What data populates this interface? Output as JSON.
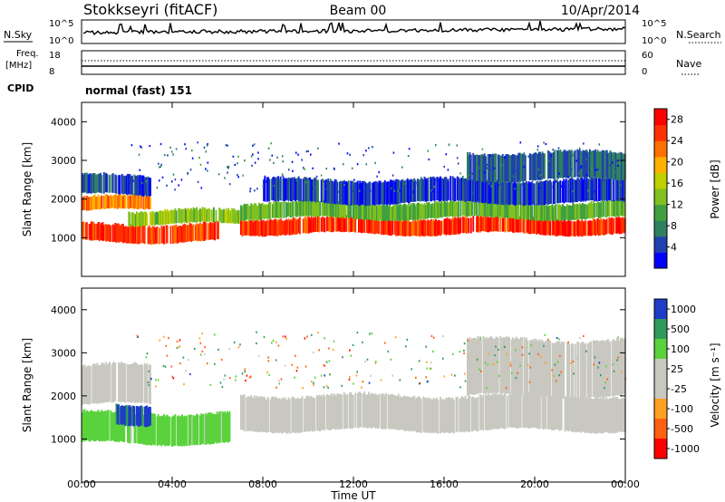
{
  "header": {
    "station": "Stokkseyri (fitACF)",
    "beam": "Beam 00",
    "date": "10/Apr/2014"
  },
  "aux": {
    "nsky_label": "N.Sky",
    "nsky_ticks": [
      "10^5",
      "10^0"
    ],
    "nsearch_label": "N.Search",
    "nsearch_ticks": [
      "10^5",
      "10^0"
    ],
    "freq_label": "Freq.",
    "freq_unit": "[MHz]",
    "freq_ticks": [
      "18",
      "8"
    ],
    "nave_label": "Nave",
    "nave_ticks": [
      "60",
      "0"
    ],
    "cpid_label": "CPID",
    "cpid_value": "normal (fast) 151"
  },
  "chart_data": [
    {
      "type": "heatmap",
      "quantity": "Power",
      "xlabel": "Time UT",
      "ylabel": "Slant Range [km]",
      "x_ticks": [
        "00:00",
        "04:00",
        "08:00",
        "12:00",
        "16:00",
        "20:00",
        "00:00"
      ],
      "xlim_hours": [
        0,
        24
      ],
      "ylim_km": [
        0,
        4500
      ],
      "y_ticks": [
        "1000",
        "2000",
        "3000",
        "4000"
      ],
      "colorbar": {
        "label": "Power [dB]",
        "ticks": [
          "4",
          "8",
          "12",
          "16",
          "20",
          "24",
          "28"
        ],
        "range": [
          0,
          30
        ],
        "colors": [
          "#0000ff",
          "#2040b0",
          "#2f8060",
          "#3fa040",
          "#80c020",
          "#c0d000",
          "#ffb000",
          "#ff7000",
          "#ff3000",
          "#ff0000"
        ]
      },
      "bands": [
        {
          "start_h": 0.0,
          "end_h": 3.0,
          "range_km": [
            1700,
            2050
          ],
          "level": 22
        },
        {
          "start_h": 0.0,
          "end_h": 3.0,
          "range_km": [
            2100,
            2600
          ],
          "level": 5
        },
        {
          "start_h": 0.0,
          "end_h": 6.0,
          "range_km": [
            900,
            1350
          ],
          "level": 25
        },
        {
          "start_h": 2.0,
          "end_h": 7.0,
          "range_km": [
            1350,
            1700
          ],
          "level": 14
        },
        {
          "start_h": 7.0,
          "end_h": 24.0,
          "range_km": [
            1100,
            1500
          ],
          "level": 26
        },
        {
          "start_h": 7.0,
          "end_h": 24.0,
          "range_km": [
            1500,
            1900
          ],
          "level": 12
        },
        {
          "start_h": 8.0,
          "end_h": 24.0,
          "range_km": [
            1900,
            2500
          ],
          "level": 4
        },
        {
          "start_h": 17.0,
          "end_h": 24.0,
          "range_km": [
            2500,
            3200
          ],
          "level": 6
        }
      ]
    },
    {
      "type": "heatmap",
      "quantity": "Velocity",
      "xlabel": "Time UT",
      "ylabel": "Slant Range [km]",
      "x_ticks": [
        "00:00",
        "04:00",
        "08:00",
        "12:00",
        "16:00",
        "20:00",
        "00:00"
      ],
      "xlim_hours": [
        0,
        24
      ],
      "ylim_km": [
        0,
        4500
      ],
      "y_ticks": [
        "1000",
        "2000",
        "3000",
        "4000"
      ],
      "colorbar": {
        "label": "Velocity [m s⁻¹]",
        "ticks": [
          "1000",
          "500",
          "100",
          "25",
          "-25",
          "-100",
          "-500",
          "-1000"
        ],
        "colors": [
          "#1e3cc8",
          "#2f9a5a",
          "#5ad23c",
          "#c8c8c0",
          "#c8c8c0",
          "#ffa020",
          "#ff6010",
          "#ff0000"
        ]
      },
      "bands": [
        {
          "start_h": 0.0,
          "end_h": 3.0,
          "range_km": [
            1800,
            2700
          ],
          "value": 0
        },
        {
          "start_h": 0.0,
          "end_h": 6.5,
          "range_km": [
            900,
            1600
          ],
          "value": 150
        },
        {
          "start_h": 1.5,
          "end_h": 3.0,
          "range_km": [
            1350,
            1800
          ],
          "value": 800
        },
        {
          "start_h": 7.0,
          "end_h": 24.0,
          "range_km": [
            1200,
            2000
          ],
          "value": 0
        },
        {
          "start_h": 17.0,
          "end_h": 24.0,
          "range_km": [
            2000,
            3300
          ],
          "value": 0
        }
      ]
    }
  ]
}
